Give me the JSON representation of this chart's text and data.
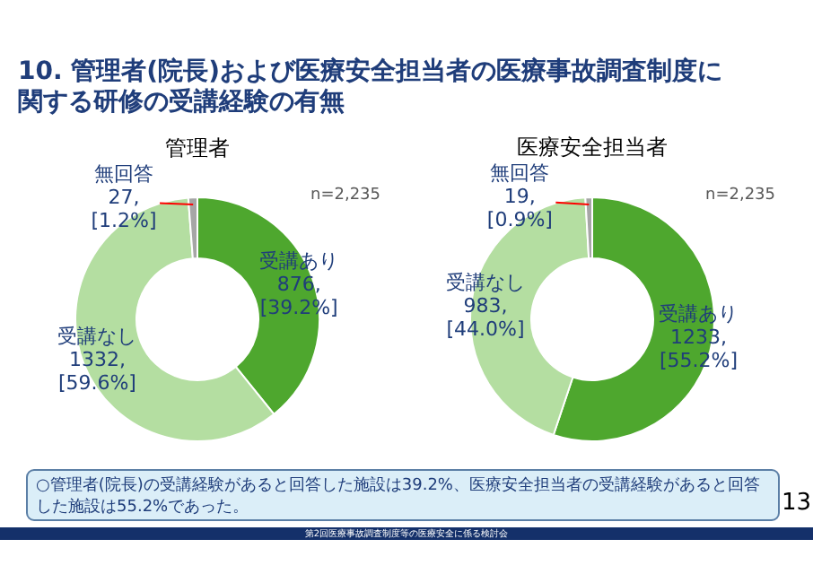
{
  "chart_data": [
    {
      "type": "other",
      "title": "10. 管理者(院長)および医療安全担当者の医療事故調査制度に関する研修の受講経験の有無"
    },
    {
      "type": "donut",
      "title": "管理者",
      "categories": [
        "受講あり",
        "受講なし",
        "無回答"
      ],
      "values": [
        39.2,
        59.6,
        1.2
      ],
      "colors": [
        "#4ea72e",
        "#b4dea1",
        "#a6a6a6"
      ],
      "value_labels": [
        "876, [39.2%]",
        "1332, [59.6%]",
        "27, [1.2%]"
      ],
      "annotations": [
        "n=2,235"
      ]
    },
    {
      "type": "donut",
      "title": "医療安全担当者",
      "categories": [
        "受講あり",
        "受講なし",
        "無回答"
      ],
      "values": [
        55.2,
        44.0,
        0.9
      ],
      "colors": [
        "#4ea72e",
        "#b4dea1",
        "#a6a6a6"
      ],
      "value_labels": [
        "1233, [55.2%]",
        "983, [44.0%]",
        "19, [0.9%]"
      ],
      "annotations": [
        "n=2,235"
      ]
    },
    {
      "type": "other",
      "annotations": [
        "○管理者(院長)の受講経験があると回答した施設は39.2%、医療安全担当者の受講経験があると回答した施設は55.2%であった。",
        "13",
        "第2回医療事故調査制度等の医療安全に係る検討会"
      ]
    }
  ]
}
